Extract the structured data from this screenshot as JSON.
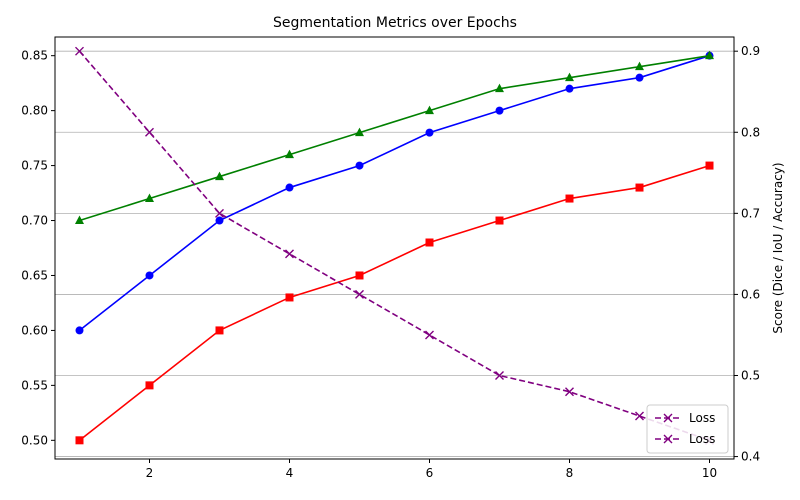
{
  "chart_data": {
    "type": "line",
    "title": "Segmentation Metrics over Epochs",
    "xlabel": "",
    "ylabel_left": "",
    "ylabel_right": "Score (Dice / IoU / Accuracy)",
    "x": [
      1,
      2,
      3,
      4,
      5,
      6,
      7,
      8,
      9,
      10
    ],
    "x_ticks": [
      2,
      4,
      6,
      8,
      10
    ],
    "xlim": [
      0.65,
      10.35
    ],
    "ylim_left": [
      0.483,
      0.867
    ],
    "ylim_right": [
      0.397,
      0.9175
    ],
    "y_ticks_left": [
      0.5,
      0.55,
      0.6,
      0.65,
      0.7,
      0.75,
      0.8,
      0.85
    ],
    "y_ticks_left_labels": [
      "0.50",
      "0.55",
      "0.60",
      "0.65",
      "0.70",
      "0.75",
      "0.80",
      "0.85"
    ],
    "y_ticks_right": [
      0.4,
      0.5,
      0.6,
      0.7,
      0.8,
      0.9
    ],
    "y_ticks_right_labels": [
      "0.4",
      "0.5",
      "0.6",
      "0.7",
      "0.8",
      "0.9"
    ],
    "grid": "horizontal lines on right axis",
    "legend_position": "lower-right",
    "series": [
      {
        "axis": "left",
        "color": "#0000ff",
        "marker": "circle",
        "style": "solid",
        "values": [
          0.6,
          0.65,
          0.7,
          0.73,
          0.75,
          0.78,
          0.8,
          0.82,
          0.83,
          0.85
        ]
      },
      {
        "axis": "left",
        "color": "#ff0000",
        "marker": "square",
        "style": "solid",
        "values": [
          0.5,
          0.55,
          0.6,
          0.63,
          0.65,
          0.68,
          0.7,
          0.72,
          0.73,
          0.75
        ]
      },
      {
        "axis": "left",
        "color": "#008000",
        "marker": "triangle",
        "style": "solid",
        "values": [
          0.7,
          0.72,
          0.74,
          0.76,
          0.78,
          0.8,
          0.82,
          0.83,
          0.84,
          0.85
        ]
      },
      {
        "axis": "right",
        "color": "#800080",
        "marker": "x",
        "style": "dashed",
        "values": [
          0.9,
          0.8,
          0.7,
          0.65,
          0.6,
          0.55,
          0.5,
          0.48,
          0.45,
          0.42
        ]
      }
    ],
    "legend": [
      {
        "label": "Loss",
        "color": "#800080",
        "marker": "x",
        "style": "dashed"
      },
      {
        "label": "Loss",
        "color": "#800080",
        "marker": "x",
        "style": "dashed"
      }
    ]
  }
}
